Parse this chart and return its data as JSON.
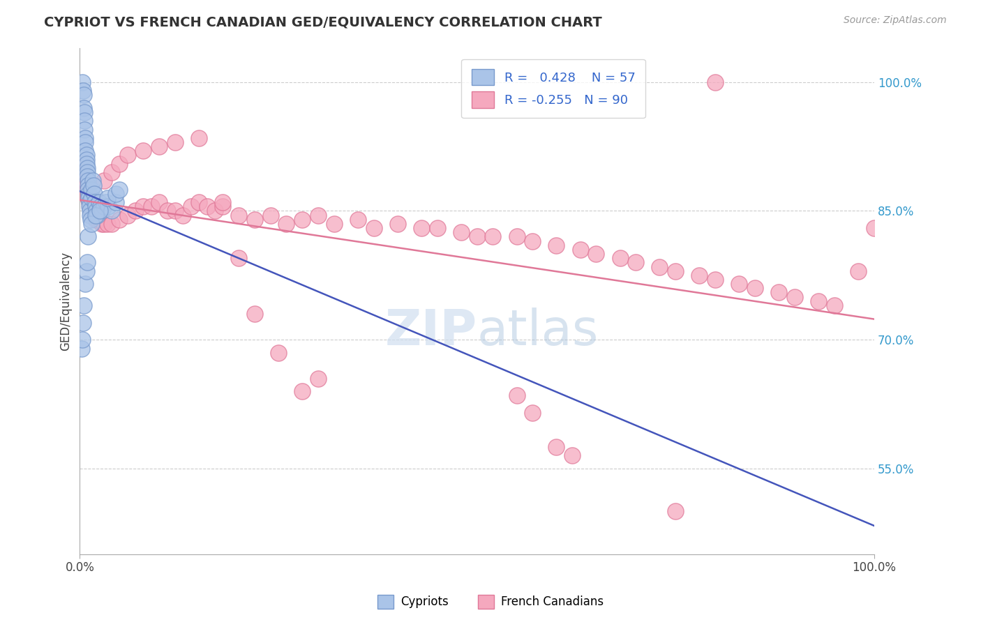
{
  "title": "CYPRIOT VS FRENCH CANADIAN GED/EQUIVALENCY CORRELATION CHART",
  "source": "Source: ZipAtlas.com",
  "ylabel": "GED/Equivalency",
  "cypriot_color": "#aac4e8",
  "cypriot_edge": "#7799cc",
  "french_color": "#f5a8be",
  "french_edge": "#e07898",
  "trend_blue": "#4455bb",
  "trend_pink": "#e07898",
  "legend_R_blue": "0.428",
  "legend_N_blue": "57",
  "legend_R_pink": "-0.255",
  "legend_N_pink": "90",
  "cypriot_label": "Cypriots",
  "french_label": "French Canadians",
  "right_yticks": [
    100.0,
    85.0,
    70.0,
    55.0
  ],
  "xmin": 0.0,
  "xmax": 100.0,
  "ymin": 45.0,
  "ymax": 104.0,
  "cypriot_x": [
    0.3,
    0.4,
    0.5,
    0.5,
    0.6,
    0.6,
    0.6,
    0.7,
    0.7,
    0.7,
    0.8,
    0.8,
    0.8,
    0.9,
    0.9,
    0.9,
    1.0,
    1.0,
    1.0,
    1.1,
    1.1,
    1.2,
    1.2,
    1.3,
    1.3,
    1.4,
    1.5,
    1.5,
    1.6,
    1.7,
    1.8,
    1.9,
    2.0,
    2.1,
    2.2,
    2.4,
    2.6,
    2.8,
    3.0,
    3.3,
    3.6,
    4.0,
    4.5,
    0.2,
    0.3,
    0.4,
    0.5,
    0.7,
    0.8,
    0.9,
    1.0,
    1.5,
    2.0,
    2.5,
    3.5,
    4.5,
    5.0
  ],
  "cypriot_y": [
    100.0,
    99.0,
    98.5,
    97.0,
    96.5,
    95.5,
    94.5,
    93.5,
    93.0,
    92.0,
    91.5,
    91.0,
    90.5,
    90.0,
    89.5,
    89.0,
    88.5,
    88.0,
    87.5,
    87.0,
    86.5,
    86.0,
    85.5,
    85.0,
    84.5,
    84.0,
    86.5,
    87.5,
    88.5,
    88.0,
    87.0,
    86.0,
    85.5,
    85.0,
    84.5,
    86.0,
    85.5,
    85.0,
    85.5,
    86.0,
    85.5,
    85.0,
    86.0,
    69.0,
    70.0,
    72.0,
    74.0,
    76.5,
    78.0,
    79.0,
    82.0,
    83.5,
    84.5,
    85.0,
    86.5,
    87.0,
    87.5
  ],
  "french_x": [
    0.4,
    0.5,
    0.6,
    0.7,
    0.8,
    0.9,
    1.0,
    1.0,
    1.1,
    1.2,
    1.3,
    1.4,
    1.5,
    1.6,
    1.7,
    1.8,
    2.0,
    2.2,
    2.5,
    2.8,
    3.0,
    3.5,
    4.0,
    5.0,
    6.0,
    7.0,
    8.0,
    9.0,
    10.0,
    11.0,
    12.0,
    13.0,
    14.0,
    15.0,
    16.0,
    17.0,
    18.0,
    20.0,
    22.0,
    24.0,
    26.0,
    28.0,
    30.0,
    32.0,
    35.0,
    37.0,
    40.0,
    43.0,
    45.0,
    48.0,
    50.0,
    52.0,
    55.0,
    57.0,
    60.0,
    63.0,
    65.0,
    68.0,
    70.0,
    73.0,
    75.0,
    78.0,
    80.0,
    83.0,
    85.0,
    88.0,
    90.0,
    93.0,
    95.0,
    98.0,
    100.0,
    3.0,
    4.0,
    5.0,
    6.0,
    8.0,
    10.0,
    12.0,
    15.0,
    18.0,
    20.0,
    22.0,
    25.0,
    28.0,
    30.0,
    55.0,
    57.0,
    60.0,
    62.0,
    75.0,
    80.0
  ],
  "french_y": [
    90.5,
    89.5,
    89.0,
    88.5,
    88.0,
    87.5,
    87.0,
    86.5,
    86.5,
    86.0,
    85.5,
    85.5,
    85.0,
    85.0,
    84.5,
    84.5,
    84.0,
    84.0,
    84.0,
    83.5,
    83.5,
    83.5,
    83.5,
    84.0,
    84.5,
    85.0,
    85.5,
    85.5,
    86.0,
    85.0,
    85.0,
    84.5,
    85.5,
    86.0,
    85.5,
    85.0,
    85.5,
    84.5,
    84.0,
    84.5,
    83.5,
    84.0,
    84.5,
    83.5,
    84.0,
    83.0,
    83.5,
    83.0,
    83.0,
    82.5,
    82.0,
    82.0,
    82.0,
    81.5,
    81.0,
    80.5,
    80.0,
    79.5,
    79.0,
    78.5,
    78.0,
    77.5,
    77.0,
    76.5,
    76.0,
    75.5,
    75.0,
    74.5,
    74.0,
    78.0,
    83.0,
    88.5,
    89.5,
    90.5,
    91.5,
    92.0,
    92.5,
    93.0,
    93.5,
    86.0,
    79.5,
    73.0,
    68.5,
    64.0,
    65.5,
    63.5,
    61.5,
    57.5,
    56.5,
    50.0,
    100.0
  ]
}
